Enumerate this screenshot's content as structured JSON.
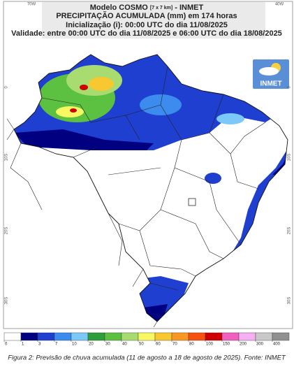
{
  "header": {
    "line1": "Modelo COSMO",
    "line1_res": "[7 x 7 km]",
    "line1_end": "- INMET",
    "line2": "PRECIPITAÇÃO ACUMULADA (mm) em 174 horas",
    "line3": "Inicialização (i): 00:00 UTC do dia 11/08/2025",
    "line4": "Validade: entre 00:00 UTC do dia 11/08/2025 e 06:00 UTC do dia 18/08/2025"
  },
  "logo": {
    "text": "INMET"
  },
  "map_axes": {
    "top": [
      "70W",
      "40W"
    ],
    "left": [
      "0",
      "10S",
      "20S",
      "30S"
    ],
    "right": [
      "0",
      "10S",
      "20S",
      "30S"
    ]
  },
  "colorbar": {
    "ticks": [
      0,
      1,
      3,
      7,
      10,
      20,
      30,
      40,
      50,
      60,
      70,
      80,
      100,
      150,
      200,
      300,
      400
    ],
    "colors": [
      "#ffffff",
      "#000080",
      "#1f3fd0",
      "#3c8cf0",
      "#7cc8f8",
      "#2e9e3a",
      "#5cc040",
      "#a8dc70",
      "#f8f860",
      "#f8c830",
      "#f89820",
      "#f85010",
      "#d00000",
      "#f060c0",
      "#f4b0f0",
      "#c8c8c8",
      "#909090"
    ]
  },
  "caption": "Figura 2: Previsão de chuva acumulada (11 de agosto a 18 de agosto de 2025). Fonte: INMET"
}
